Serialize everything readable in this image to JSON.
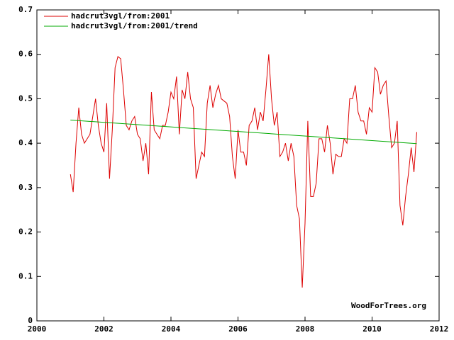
{
  "chart_data": {
    "type": "line",
    "annotation": "WoodForTrees.org",
    "legend": "upper-left",
    "xlim": [
      2000,
      2012
    ],
    "xticks": [
      2000,
      2002,
      2004,
      2006,
      2008,
      2010,
      2012
    ],
    "ylim": [
      0,
      0.7
    ],
    "yticks": [
      0,
      0.1,
      0.2,
      0.3,
      0.4,
      0.5,
      0.6,
      0.7
    ],
    "series": [
      {
        "name": "hadcrut3vgl/from:2001",
        "color": "#dd0000",
        "x": [
          2001.0,
          2001.083,
          2001.167,
          2001.25,
          2001.333,
          2001.417,
          2001.5,
          2001.583,
          2001.667,
          2001.75,
          2001.833,
          2001.917,
          2002.0,
          2002.083,
          2002.167,
          2002.25,
          2002.333,
          2002.417,
          2002.5,
          2002.583,
          2002.667,
          2002.75,
          2002.833,
          2002.917,
          2003.0,
          2003.083,
          2003.167,
          2003.25,
          2003.333,
          2003.417,
          2003.5,
          2003.583,
          2003.667,
          2003.75,
          2003.833,
          2003.917,
          2004.0,
          2004.083,
          2004.167,
          2004.25,
          2004.333,
          2004.417,
          2004.5,
          2004.583,
          2004.667,
          2004.75,
          2004.833,
          2004.917,
          2005.0,
          2005.083,
          2005.167,
          2005.25,
          2005.333,
          2005.417,
          2005.5,
          2005.583,
          2005.667,
          2005.75,
          2005.833,
          2005.917,
          2006.0,
          2006.083,
          2006.167,
          2006.25,
          2006.333,
          2006.417,
          2006.5,
          2006.583,
          2006.667,
          2006.75,
          2006.833,
          2006.917,
          2007.0,
          2007.083,
          2007.167,
          2007.25,
          2007.333,
          2007.417,
          2007.5,
          2007.583,
          2007.667,
          2007.75,
          2007.833,
          2007.917,
          2008.0,
          2008.083,
          2008.167,
          2008.25,
          2008.333,
          2008.417,
          2008.5,
          2008.583,
          2008.667,
          2008.75,
          2008.833,
          2008.917,
          2009.0,
          2009.083,
          2009.167,
          2009.25,
          2009.333,
          2009.417,
          2009.5,
          2009.583,
          2009.667,
          2009.75,
          2009.833,
          2009.917,
          2010.0,
          2010.083,
          2010.167,
          2010.25,
          2010.333,
          2010.417,
          2010.5,
          2010.583,
          2010.667,
          2010.75,
          2010.833,
          2010.917,
          2011.0,
          2011.083,
          2011.167,
          2011.25,
          2011.333
        ],
        "values": [
          0.33,
          0.29,
          0.4,
          0.48,
          0.42,
          0.4,
          0.41,
          0.42,
          0.46,
          0.5,
          0.44,
          0.4,
          0.38,
          0.49,
          0.32,
          0.43,
          0.57,
          0.595,
          0.59,
          0.52,
          0.44,
          0.43,
          0.45,
          0.46,
          0.42,
          0.41,
          0.36,
          0.4,
          0.33,
          0.515,
          0.43,
          0.42,
          0.41,
          0.44,
          0.44,
          0.47,
          0.515,
          0.5,
          0.55,
          0.42,
          0.52,
          0.5,
          0.56,
          0.5,
          0.48,
          0.32,
          0.35,
          0.38,
          0.37,
          0.49,
          0.53,
          0.48,
          0.51,
          0.53,
          0.5,
          0.495,
          0.49,
          0.46,
          0.37,
          0.32,
          0.43,
          0.38,
          0.38,
          0.35,
          0.44,
          0.45,
          0.48,
          0.43,
          0.47,
          0.45,
          0.52,
          0.6,
          0.5,
          0.44,
          0.47,
          0.37,
          0.38,
          0.4,
          0.36,
          0.4,
          0.37,
          0.26,
          0.23,
          0.075,
          0.22,
          0.45,
          0.28,
          0.28,
          0.31,
          0.41,
          0.41,
          0.38,
          0.44,
          0.4,
          0.33,
          0.375,
          0.37,
          0.37,
          0.41,
          0.4,
          0.5,
          0.5,
          0.53,
          0.47,
          0.45,
          0.45,
          0.42,
          0.48,
          0.47,
          0.57,
          0.56,
          0.51,
          0.53,
          0.54,
          0.46,
          0.39,
          0.4,
          0.45,
          0.26,
          0.215,
          0.28,
          0.33,
          0.39,
          0.335,
          0.425
        ]
      },
      {
        "name": "hadcrut3vgl/from:2001/trend",
        "color": "#00aa00",
        "x": [
          2001.0,
          2011.333
        ],
        "values": [
          0.452,
          0.399
        ]
      }
    ]
  }
}
